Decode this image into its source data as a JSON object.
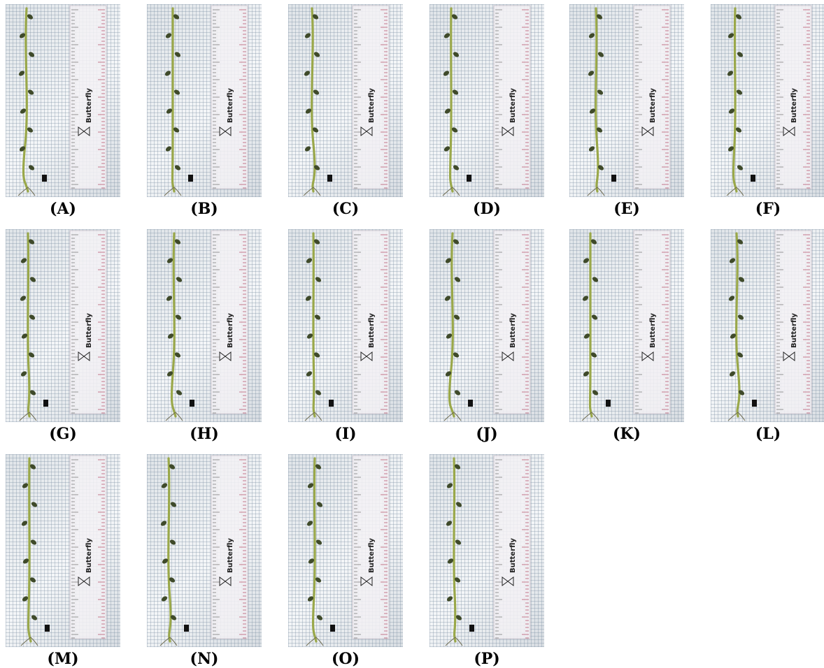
{
  "figure": {
    "panels": [
      {
        "label": "(A)",
        "ruler_text": "Butterfly"
      },
      {
        "label": "(B)",
        "ruler_text": "Butterfly"
      },
      {
        "label": "(C)",
        "ruler_text": "Butterfly"
      },
      {
        "label": "(D)",
        "ruler_text": "Butterfly"
      },
      {
        "label": "(E)",
        "ruler_text": "Butterfly"
      },
      {
        "label": "(F)",
        "ruler_text": "Butterfly"
      },
      {
        "label": "(G)",
        "ruler_text": "Butterfly"
      },
      {
        "label": "(H)",
        "ruler_text": "Butterfly"
      },
      {
        "label": "(I)",
        "ruler_text": "Butterfly"
      },
      {
        "label": "(J)",
        "ruler_text": "Butterfly"
      },
      {
        "label": "(K)",
        "ruler_text": "Butterfly"
      },
      {
        "label": "(L)",
        "ruler_text": "Butterfly"
      },
      {
        "label": "(M)",
        "ruler_text": "Butterfly"
      },
      {
        "label": "(N)",
        "ruler_text": "Butterfly"
      },
      {
        "label": "(O)",
        "ruler_text": "Butterfly"
      },
      {
        "label": "(P)",
        "ruler_text": "Butterfly"
      }
    ]
  },
  "colors": {
    "stem": "#9aa84a",
    "leaf": "#3f4a2a",
    "ruler": "#f3f1f4",
    "ruler_tick": "#b5566e",
    "label": "#000000"
  }
}
